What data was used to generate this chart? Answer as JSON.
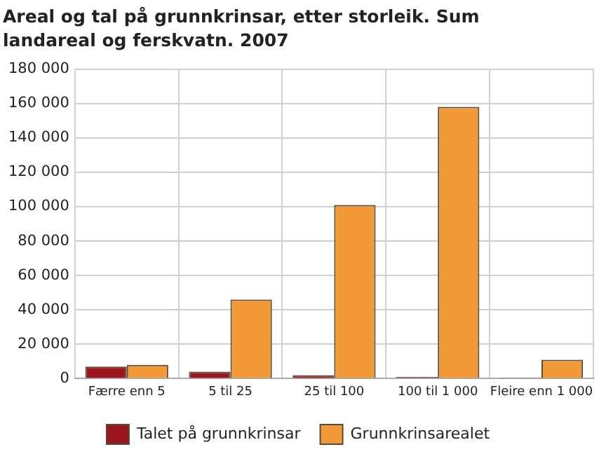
{
  "chart_data": {
    "type": "bar",
    "title": "Areal og tal på grunnkrinsar, etter storleik. Sum landareal og ferskvatn. 2007",
    "categories": [
      "Færre enn 5",
      "5 til 25",
      "25 til 100",
      "100 til 1 000",
      "Fleire enn 1 000"
    ],
    "series": [
      {
        "name": "Talet på grunnkrinsar",
        "color": "#9b151c",
        "values": [
          7000,
          4000,
          2000,
          1000,
          200
        ]
      },
      {
        "name": "Grunnkrinsarealet",
        "color": "#f39a38",
        "values": [
          8000,
          46000,
          101000,
          158000,
          11000
        ]
      }
    ],
    "ylim": [
      0,
      180000
    ],
    "yticks": [
      {
        "value": 0,
        "label": "0"
      },
      {
        "value": 20000,
        "label": "20 000"
      },
      {
        "value": 40000,
        "label": "40 000"
      },
      {
        "value": 60000,
        "label": "60 000"
      },
      {
        "value": 80000,
        "label": "80 000"
      },
      {
        "value": 100000,
        "label": "100 000"
      },
      {
        "value": 120000,
        "label": "120 000"
      },
      {
        "value": 140000,
        "label": "140 000"
      },
      {
        "value": 160000,
        "label": "160 000"
      },
      {
        "value": 180000,
        "label": "180 000"
      }
    ],
    "grid": true,
    "legend": "bottom"
  }
}
